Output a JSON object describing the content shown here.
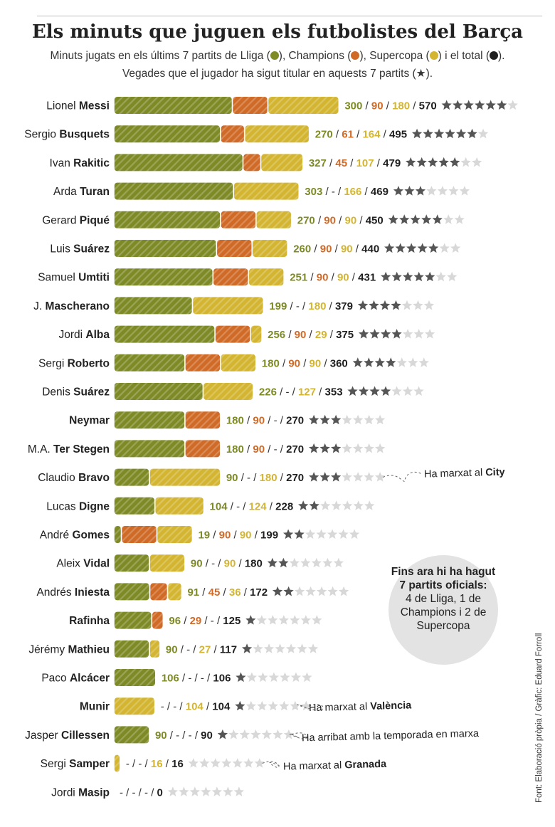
{
  "title": "Els minuts que juguen els futbolistes del Barça",
  "subtitle_line1_parts": [
    "Minuts jugats en els últims 7 partits de Lliga (",
    "), Champions (",
    "), Supercopa (",
    ") i el total (",
    ")."
  ],
  "subtitle_line2": "Vegades que el jugador ha sigut titular en aquests 7 partits (★).",
  "colors": {
    "lliga": "#7e8a26",
    "champions": "#d06a27",
    "supercopa": "#d3b531",
    "total": "#1f1f1f",
    "star_on": "#555555",
    "star_off": "#d8d8d8"
  },
  "chart_data": {
    "type": "bar",
    "stacked": true,
    "orientation": "horizontal",
    "series_names": [
      "Lliga",
      "Champions",
      "Supercopa"
    ],
    "max_stars": 7,
    "players": [
      {
        "first": "Lionel",
        "last": "Messi",
        "lliga": 300,
        "champions": 90,
        "supercopa": 180,
        "total": 570,
        "stars": 6
      },
      {
        "first": "Sergio",
        "last": "Busquets",
        "lliga": 270,
        "champions": 61,
        "supercopa": 164,
        "total": 495,
        "stars": 6
      },
      {
        "first": "Ivan",
        "last": "Rakitic",
        "lliga": 327,
        "champions": 45,
        "supercopa": 107,
        "total": 479,
        "stars": 5
      },
      {
        "first": "Arda",
        "last": "Turan",
        "lliga": 303,
        "champions": null,
        "supercopa": 166,
        "total": 469,
        "stars": 3
      },
      {
        "first": "Gerard",
        "last": "Piqué",
        "lliga": 270,
        "champions": 90,
        "supercopa": 90,
        "total": 450,
        "stars": 5
      },
      {
        "first": "Luis",
        "last": "Suárez",
        "lliga": 260,
        "champions": 90,
        "supercopa": 90,
        "total": 440,
        "stars": 5
      },
      {
        "first": "Samuel",
        "last": "Umtiti",
        "lliga": 251,
        "champions": 90,
        "supercopa": 90,
        "total": 431,
        "stars": 5
      },
      {
        "first": "J.",
        "last": "Mascherano",
        "lliga": 199,
        "champions": null,
        "supercopa": 180,
        "total": 379,
        "stars": 4
      },
      {
        "first": "Jordi",
        "last": "Alba",
        "lliga": 256,
        "champions": 90,
        "supercopa": 29,
        "total": 375,
        "stars": 4
      },
      {
        "first": "Sergi",
        "last": "Roberto",
        "lliga": 180,
        "champions": 90,
        "supercopa": 90,
        "total": 360,
        "stars": 4
      },
      {
        "first": "Denis",
        "last": "Suárez",
        "lliga": 226,
        "champions": null,
        "supercopa": 127,
        "total": 353,
        "stars": 4
      },
      {
        "first": "",
        "last": "Neymar",
        "lliga": 180,
        "champions": 90,
        "supercopa": null,
        "total": 270,
        "stars": 3
      },
      {
        "first": "M.A.",
        "last": "Ter Stegen",
        "lliga": 180,
        "champions": 90,
        "supercopa": null,
        "total": 270,
        "stars": 3
      },
      {
        "first": "Claudio",
        "last": "Bravo",
        "lliga": 90,
        "champions": null,
        "supercopa": 180,
        "total": 270,
        "stars": 3,
        "note_pre": "Ha marxat al ",
        "note_bold": "City"
      },
      {
        "first": "Lucas",
        "last": "Digne",
        "lliga": 104,
        "champions": null,
        "supercopa": 124,
        "total": 228,
        "stars": 2
      },
      {
        "first": "André",
        "last": "Gomes",
        "lliga": 19,
        "champions": 90,
        "supercopa": 90,
        "total": 199,
        "stars": 2
      },
      {
        "first": "Aleix",
        "last": "Vidal",
        "lliga": 90,
        "champions": null,
        "supercopa": 90,
        "total": 180,
        "stars": 2
      },
      {
        "first": "Andrés",
        "last": "Iniesta",
        "lliga": 91,
        "champions": 45,
        "supercopa": 36,
        "total": 172,
        "stars": 2
      },
      {
        "first": "",
        "last": "Rafinha",
        "lliga": 96,
        "champions": 29,
        "supercopa": null,
        "total": 125,
        "stars": 1
      },
      {
        "first": "Jérémy",
        "last": "Mathieu",
        "lliga": 90,
        "champions": null,
        "supercopa": 27,
        "total": 117,
        "stars": 1
      },
      {
        "first": "Paco",
        "last": "Alcácer",
        "lliga": 106,
        "champions": null,
        "supercopa": null,
        "total": 106,
        "stars": 1
      },
      {
        "first": "",
        "last": "Munir",
        "lliga": null,
        "champions": null,
        "supercopa": 104,
        "total": 104,
        "stars": 1,
        "note_pre": "Ha marxat al ",
        "note_bold": "València"
      },
      {
        "first": "Jasper",
        "last": "Cillessen",
        "lliga": 90,
        "champions": null,
        "supercopa": null,
        "total": 90,
        "stars": 1,
        "note_pre": "Ha arribat amb la temporada en marxa",
        "note_bold": ""
      },
      {
        "first": "Sergi",
        "last": "Samper",
        "lliga": null,
        "champions": null,
        "supercopa": 16,
        "total": 16,
        "stars": 0,
        "note_pre": "Ha marxat al ",
        "note_bold": "Granada"
      },
      {
        "first": "Jordi",
        "last": "Masip",
        "lliga": null,
        "champions": null,
        "supercopa": null,
        "total": 0,
        "stars": 0
      }
    ]
  },
  "callout": {
    "line_bold": "Fins ara hi ha hagut 7 partits oficials:",
    "line_regular": "4 de Lliga, 1 de Champions i 2 de Supercopa"
  },
  "credit": "Font: Elaboració pròpia / Gràfic: Eduard Forroll"
}
